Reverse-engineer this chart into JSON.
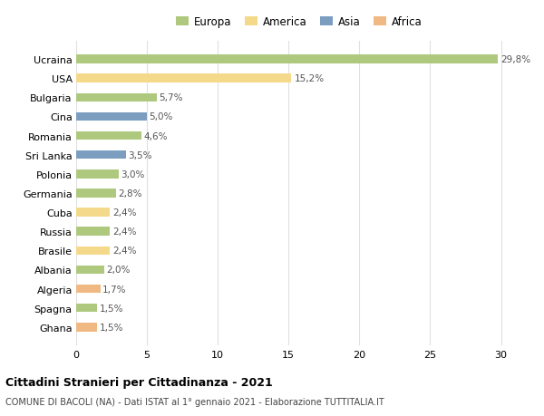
{
  "countries": [
    "Ucraina",
    "USA",
    "Bulgaria",
    "Cina",
    "Romania",
    "Sri Lanka",
    "Polonia",
    "Germania",
    "Cuba",
    "Russia",
    "Brasile",
    "Albania",
    "Algeria",
    "Spagna",
    "Ghana"
  ],
  "values": [
    29.8,
    15.2,
    5.7,
    5.0,
    4.6,
    3.5,
    3.0,
    2.8,
    2.4,
    2.4,
    2.4,
    2.0,
    1.7,
    1.5,
    1.5
  ],
  "labels": [
    "29,8%",
    "15,2%",
    "5,7%",
    "5,0%",
    "4,6%",
    "3,5%",
    "3,0%",
    "2,8%",
    "2,4%",
    "2,4%",
    "2,4%",
    "2,0%",
    "1,7%",
    "1,5%",
    "1,5%"
  ],
  "continents": [
    "Europa",
    "America",
    "Europa",
    "Asia",
    "Europa",
    "Asia",
    "Europa",
    "Europa",
    "America",
    "Europa",
    "America",
    "Europa",
    "Africa",
    "Europa",
    "Africa"
  ],
  "colors": {
    "Europa": "#aec97e",
    "America": "#f5d98b",
    "Asia": "#7b9dc0",
    "Africa": "#f0b882"
  },
  "legend_order": [
    "Europa",
    "America",
    "Asia",
    "Africa"
  ],
  "legend_colors": [
    "#aec97e",
    "#f5d98b",
    "#7b9dc0",
    "#f0b882"
  ],
  "title": "Cittadini Stranieri per Cittadinanza - 2021",
  "subtitle": "COMUNE DI BACOLI (NA) - Dati ISTAT al 1° gennaio 2021 - Elaborazione TUTTITALIA.IT",
  "xlim": [
    0,
    31.5
  ],
  "xticks": [
    0,
    5,
    10,
    15,
    20,
    25,
    30
  ],
  "background_color": "#ffffff",
  "grid_color": "#e0e0e0"
}
